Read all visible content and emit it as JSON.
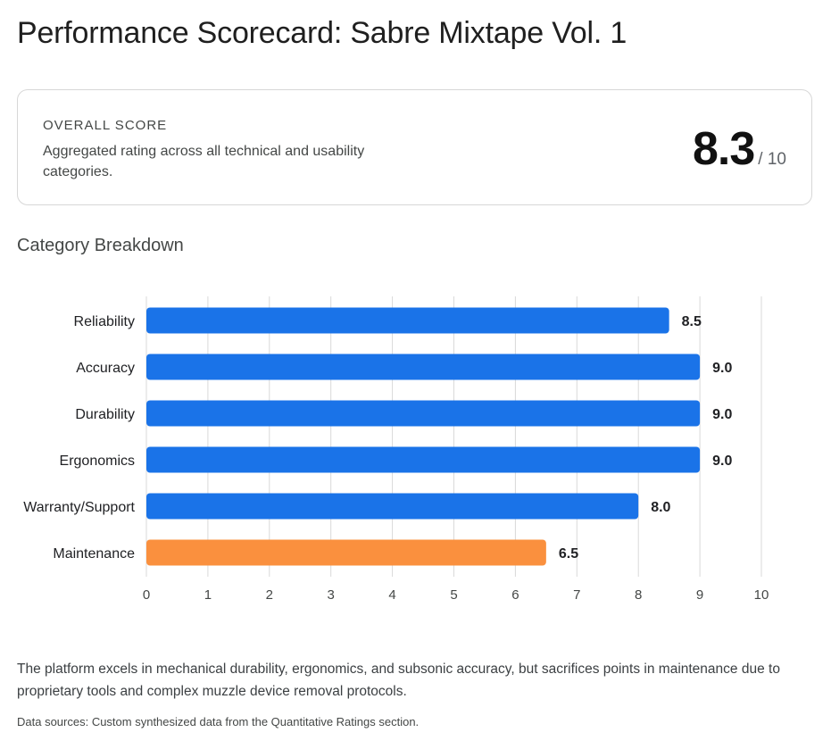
{
  "title": "Performance Scorecard: Sabre Mixtape Vol. 1",
  "overall": {
    "label": "OVERALL SCORE",
    "description": "Aggregated rating across all technical and usability categories.",
    "score": "8.3",
    "max": "/ 10"
  },
  "section_title": "Category Breakdown",
  "chart_data": {
    "type": "bar",
    "orientation": "horizontal",
    "categories": [
      "Reliability",
      "Accuracy",
      "Durability",
      "Ergonomics",
      "Warranty/Support",
      "Maintenance"
    ],
    "values": [
      8.5,
      9.0,
      9.0,
      9.0,
      8.0,
      6.5
    ],
    "value_labels": [
      "8.5",
      "9.0",
      "9.0",
      "9.0",
      "8.0",
      "6.5"
    ],
    "colors": [
      "#1a73e8",
      "#1a73e8",
      "#1a73e8",
      "#1a73e8",
      "#1a73e8",
      "#fa903e"
    ],
    "xlim": [
      0,
      10
    ],
    "x_ticks": [
      0,
      1,
      2,
      3,
      4,
      5,
      6,
      7,
      8,
      9,
      10
    ],
    "grid": true,
    "title": "",
    "xlabel": "",
    "ylabel": ""
  },
  "summary": "The platform excels in mechanical durability, ergonomics, and subsonic accuracy, but sacrifices points in maintenance due to proprietary tools and complex muzzle device removal protocols.",
  "sources": "Data sources: Custom synthesized data from the Quantitative Ratings section."
}
